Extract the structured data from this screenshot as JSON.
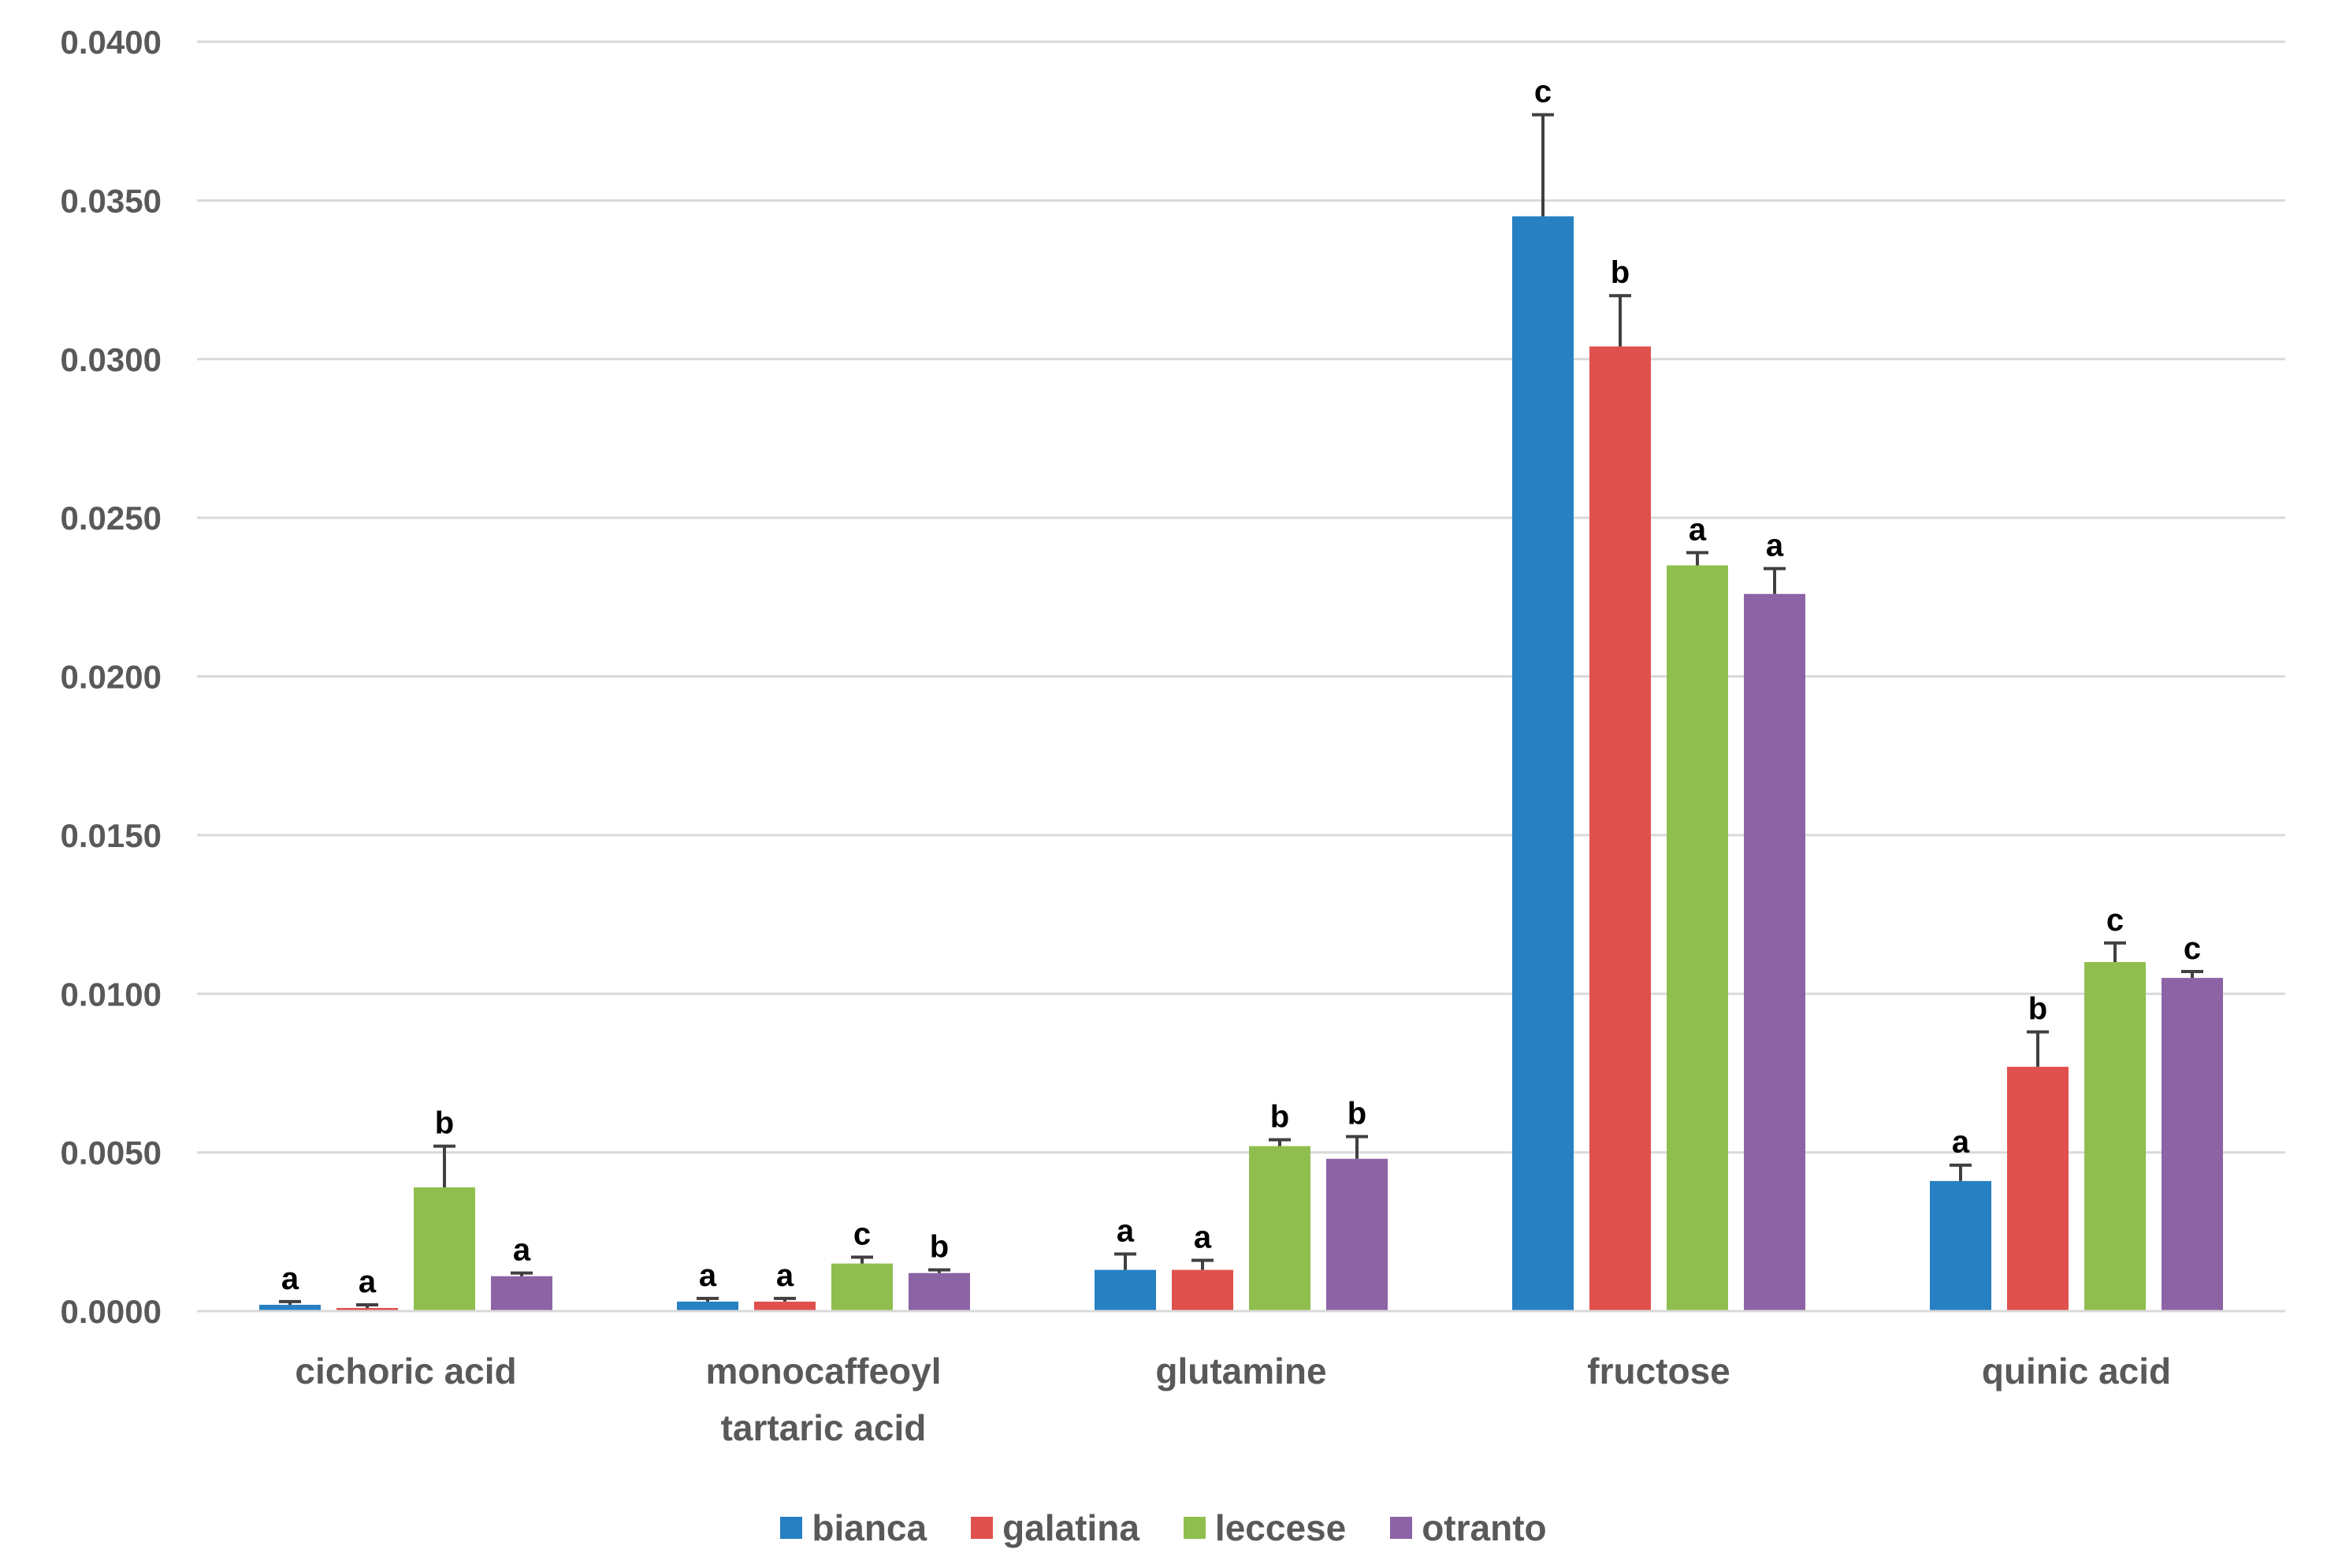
{
  "chart_data": {
    "type": "bar",
    "title": "",
    "xlabel": "",
    "ylabel": "",
    "ylim": [
      0,
      0.04
    ],
    "yticks": [
      "0.0000",
      "0.0050",
      "0.0100",
      "0.0150",
      "0.0200",
      "0.0250",
      "0.0300",
      "0.0350",
      "0.0400"
    ],
    "grid": true,
    "legend_position": "bottom-center",
    "categories": [
      [
        "cichoric acid"
      ],
      [
        "monocaffeoyl",
        "tartaric acid"
      ],
      [
        "glutamine"
      ],
      [
        "fructose"
      ],
      [
        "quinic acid"
      ]
    ],
    "series": [
      {
        "name": "bianca",
        "color": "#2680C2",
        "values": [
          0.0002,
          0.0003,
          0.0013,
          0.0345,
          0.0041
        ],
        "errors": [
          0.0001,
          0.0001,
          0.0005,
          0.0032,
          0.0005
        ],
        "letters": [
          "a",
          "a",
          "a",
          "c",
          "a"
        ]
      },
      {
        "name": "galatina",
        "color": "#E0514D",
        "values": [
          0.0001,
          0.0003,
          0.0013,
          0.0304,
          0.0077
        ],
        "errors": [
          0.0001,
          0.0001,
          0.0003,
          0.0016,
          0.0011
        ],
        "letters": [
          "a",
          "a",
          "a",
          "b",
          "b"
        ]
      },
      {
        "name": "leccese",
        "color": "#8FBE4F",
        "values": [
          0.0039,
          0.0015,
          0.0052,
          0.0235,
          0.011
        ],
        "errors": [
          0.0013,
          0.0002,
          0.0002,
          0.0004,
          0.0006
        ],
        "letters": [
          "b",
          "c",
          "b",
          "a",
          "c"
        ]
      },
      {
        "name": "otranto",
        "color": "#8C63A5",
        "values": [
          0.0011,
          0.0012,
          0.0048,
          0.0226,
          0.0105
        ],
        "errors": [
          0.0001,
          0.0001,
          0.0007,
          0.0008,
          0.0002
        ],
        "letters": [
          "a",
          "b",
          "b",
          "a",
          "c"
        ]
      }
    ]
  }
}
